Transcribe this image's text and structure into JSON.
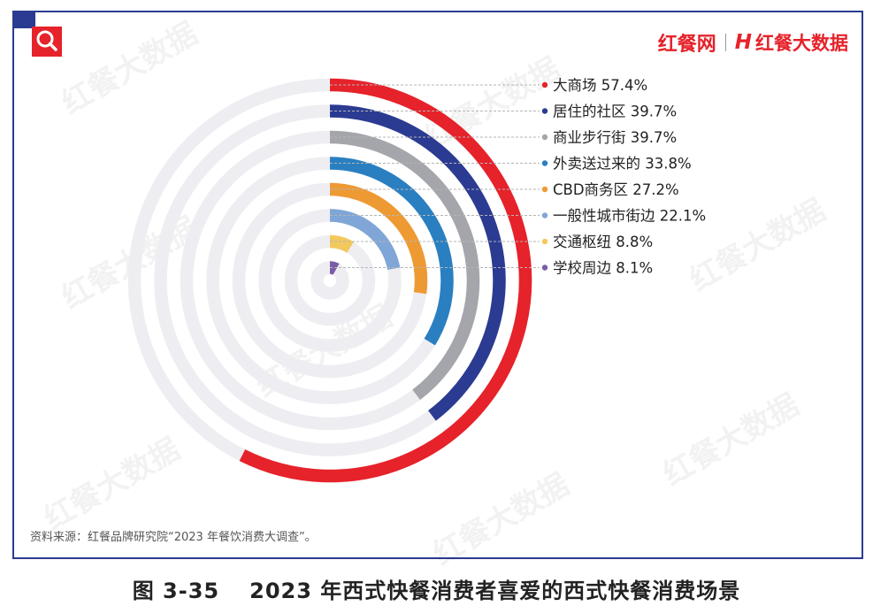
{
  "brand": {
    "primary": "红餐网",
    "secondary": "红餐大数据",
    "logo_letter": "H"
  },
  "watermark": "红餐大数据",
  "source_note": "资料来源：红餐品牌研究院“2023 年餐饮消费大调查”。",
  "caption": {
    "number": "图 3-35",
    "title": "2023 年西式快餐消费者喜爱的西式快餐消费场景"
  },
  "colors": {
    "frame": "#2b3b91",
    "accent": "#e6222a",
    "track": "#eeeef2"
  },
  "icons": {
    "search": "search-icon"
  },
  "chart_data": {
    "type": "radial-bar",
    "title": "",
    "unit": "%",
    "max_value": 100,
    "categories": [
      "大商场",
      "居住的社区",
      "商业步行街",
      "外卖送过来的",
      "CBD商务区",
      "一般性城市街边",
      "交通枢纽",
      "学校周边"
    ],
    "values": [
      57.4,
      39.7,
      39.7,
      33.8,
      27.2,
      22.1,
      8.8,
      8.1
    ],
    "labels": [
      "57.4%",
      "39.7%",
      "39.7%",
      "33.8%",
      "27.2%",
      "22.1%",
      "8.8%",
      "8.1%"
    ],
    "series_colors": [
      "#e6222a",
      "#2b3b91",
      "#a5a6ab",
      "#2a7fc1",
      "#ee9a33",
      "#7fa6d6",
      "#f3c95e",
      "#7a5ca8"
    ],
    "legend_position": "right",
    "grid": false
  }
}
